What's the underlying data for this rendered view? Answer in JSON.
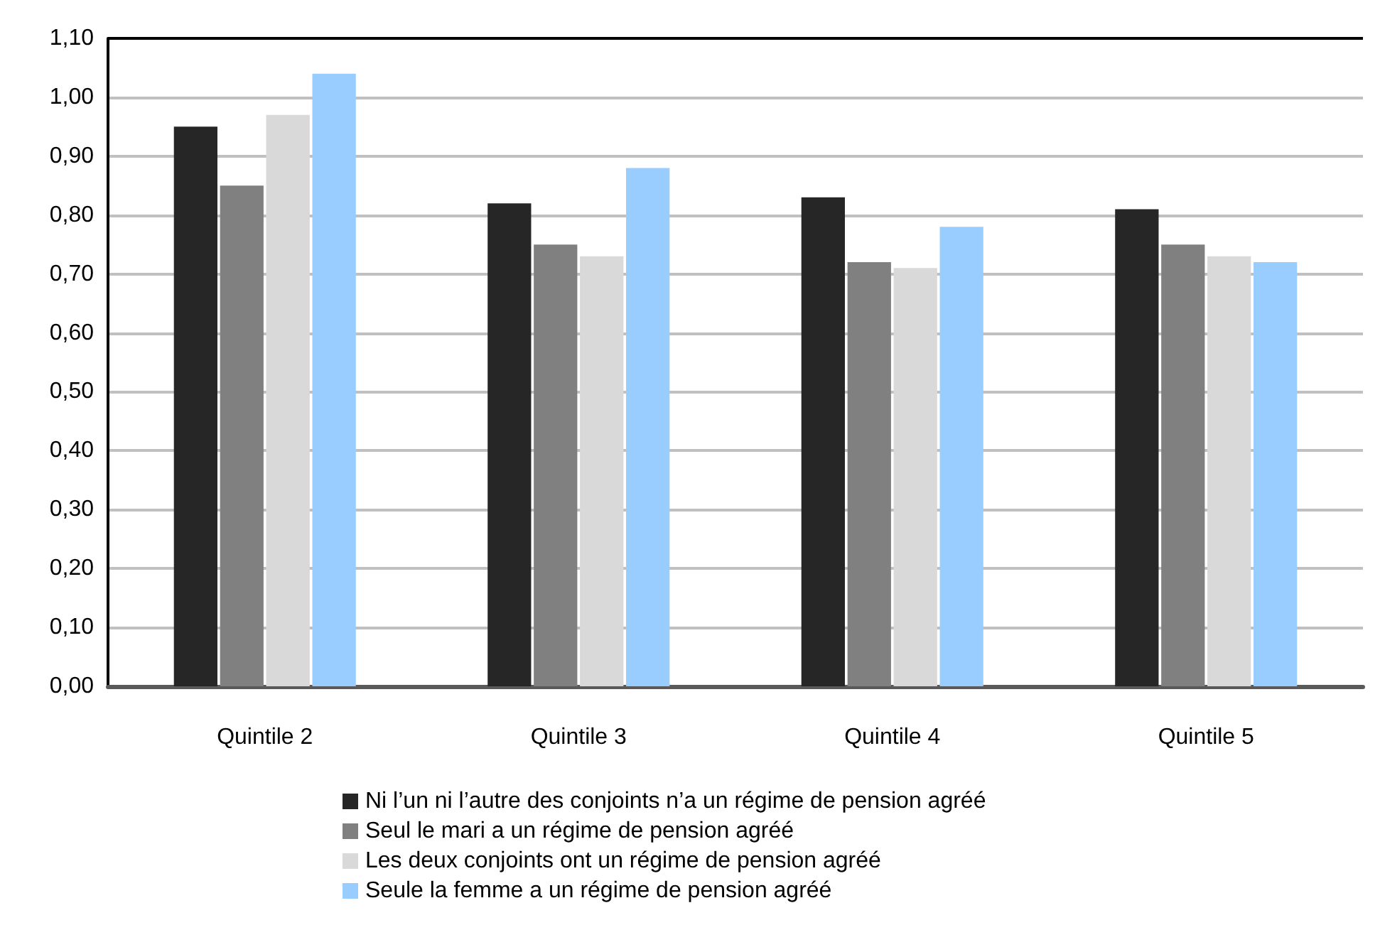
{
  "chart_data": {
    "type": "bar",
    "categories": [
      "Quintile 2",
      "Quintile 3",
      "Quintile 4",
      "Quintile 5"
    ],
    "series": [
      {
        "name": "Ni l’un ni l’autre des conjoints n’a un régime de pension agréé",
        "color": "#262626",
        "values": [
          0.95,
          0.82,
          0.83,
          0.81
        ]
      },
      {
        "name": "Seul le mari a un régime de pension agréé",
        "color": "#808080",
        "values": [
          0.85,
          0.75,
          0.72,
          0.75
        ]
      },
      {
        "name": "Les deux conjoints ont un régime de pension agréé",
        "color": "#d9d9d9",
        "values": [
          0.97,
          0.73,
          0.71,
          0.73
        ]
      },
      {
        "name": "Seule la femme a un régime de pension agréé",
        "color": "#99ccff",
        "values": [
          1.04,
          0.88,
          0.78,
          0.72
        ]
      }
    ],
    "ylim": [
      0,
      1.1
    ],
    "yticks": [
      {
        "value": 0,
        "label": "0,00"
      },
      {
        "value": 0.1,
        "label": "0,10"
      },
      {
        "value": 0.2,
        "label": "0,20"
      },
      {
        "value": 0.3,
        "label": "0,30"
      },
      {
        "value": 0.4,
        "label": "0,40"
      },
      {
        "value": 0.5,
        "label": "0,50"
      },
      {
        "value": 0.6,
        "label": "0,60"
      },
      {
        "value": 0.7,
        "label": "0,70"
      },
      {
        "value": 0.8,
        "label": "0,80"
      },
      {
        "value": 0.9,
        "label": "0,90"
      },
      {
        "value": 1.0,
        "label": "1,00"
      },
      {
        "value": 1.1,
        "label": "1,10"
      }
    ],
    "grid": "y",
    "legend": "bottom"
  }
}
